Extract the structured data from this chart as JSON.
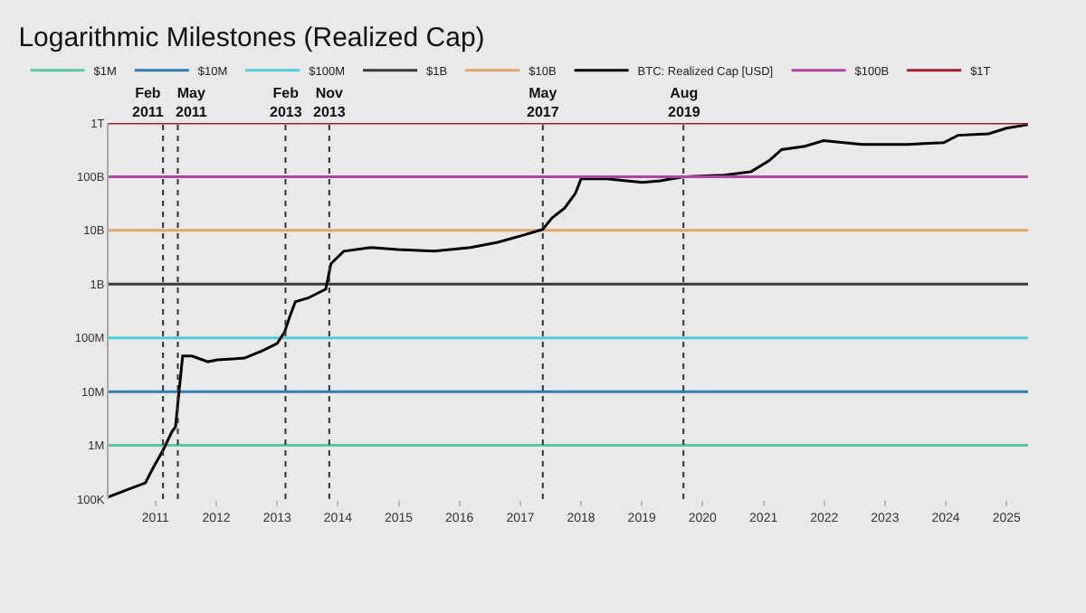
{
  "chart_data": {
    "type": "line",
    "title": "Logarithmic Milestones (Realized Cap)",
    "log": "y",
    "grid": false,
    "legend": "top left",
    "marker": "none",
    "xlim": [
      "2010-03-25",
      "2025-05-10"
    ],
    "xticks": [
      {
        "value": "2011-01-01",
        "label": "2011"
      },
      {
        "value": "2012-01-01",
        "label": "2012"
      },
      {
        "value": "2013-01-01",
        "label": "2013"
      },
      {
        "value": "2014-01-01",
        "label": "2014"
      },
      {
        "value": "2015-01-01",
        "label": "2015"
      },
      {
        "value": "2016-01-01",
        "label": "2016"
      },
      {
        "value": "2017-01-01",
        "label": "2017"
      },
      {
        "value": "2018-01-01",
        "label": "2018"
      },
      {
        "value": "2019-01-01",
        "label": "2019"
      },
      {
        "value": "2020-01-01",
        "label": "2020"
      },
      {
        "value": "2021-01-01",
        "label": "2021"
      },
      {
        "value": "2022-01-01",
        "label": "2022"
      },
      {
        "value": "2023-01-01",
        "label": "2023"
      },
      {
        "value": "2024-01-01",
        "label": "2024"
      },
      {
        "value": "2025-01-01",
        "label": "2025"
      }
    ],
    "ylim": [
      100000,
      1000000000000
    ],
    "yticks": [
      {
        "value": 100000,
        "label": "100K"
      },
      {
        "value": 1000000,
        "label": "1M"
      },
      {
        "value": 10000000,
        "label": "10M"
      },
      {
        "value": 100000000,
        "label": "100M"
      },
      {
        "value": 1000000000,
        "label": "1B"
      },
      {
        "value": 10000000000,
        "label": "10B"
      },
      {
        "value": 100000000000,
        "label": "100B"
      },
      {
        "value": 1000000000000,
        "label": "1T"
      }
    ],
    "series": [
      {
        "name": "$1M",
        "color": "#5cc6a4",
        "x": [
          "2010-03-25",
          "2025-05-10"
        ],
        "values": [
          1000000,
          1000000
        ]
      },
      {
        "name": "$10M",
        "color": "#2f7bb0",
        "x": [
          "2010-03-25",
          "2025-05-10"
        ],
        "values": [
          10000000,
          10000000
        ]
      },
      {
        "name": "$100M",
        "color": "#4fcfdc",
        "x": [
          "2010-03-25",
          "2025-05-10"
        ],
        "values": [
          100000000,
          100000000
        ]
      },
      {
        "name": "$1B",
        "color": "#3a3a3a",
        "x": [
          "2010-03-25",
          "2025-05-10"
        ],
        "values": [
          1000000000,
          1000000000
        ]
      },
      {
        "name": "$10B",
        "color": "#e0a56a",
        "x": [
          "2010-03-25",
          "2025-05-10"
        ],
        "values": [
          10000000000,
          10000000000
        ]
      },
      {
        "name": "BTC: Realized Cap [USD]",
        "color": "#000000",
        "x": [
          "2010-03-25",
          "2010-07-15",
          "2010-11-01",
          "2010-12-15",
          "2011-02-15",
          "2011-04-10",
          "2011-05-01",
          "2011-05-22",
          "2011-06-13",
          "2011-08-08",
          "2011-11-13",
          "2012-01-08",
          "2012-06-18",
          "2012-10-05",
          "2013-01-01",
          "2013-02-15",
          "2013-03-18",
          "2013-04-20",
          "2013-07-05",
          "2013-10-20",
          "2013-11-20",
          "2014-02-05",
          "2014-07-18",
          "2014-12-28",
          "2015-08-03",
          "2016-03-08",
          "2016-08-18",
          "2017-01-28",
          "2017-05-16",
          "2017-07-10",
          "2017-09-24",
          "2017-11-28",
          "2018-01-01",
          "2018-06-01",
          "2019-01-05",
          "2019-04-22",
          "2019-09-01",
          "2020-05-08",
          "2020-10-19",
          "2021-02-05",
          "2021-04-20",
          "2021-09-08",
          "2021-12-28",
          "2022-08-15",
          "2023-05-15",
          "2023-12-20",
          "2024-03-15",
          "2024-09-15",
          "2025-01-01",
          "2025-05-08"
        ],
        "values": [
          110000,
          150000,
          200000,
          370000,
          810000,
          1800000,
          2200000,
          10000000,
          46000000,
          46000000,
          36000000,
          39000000,
          42000000,
          58000000,
          79000000,
          130000000,
          250000000,
          470000000,
          550000000,
          810000000,
          2400000000,
          4100000000,
          4800000000,
          4400000000,
          4100000000,
          4800000000,
          6000000000,
          8300000000,
          10500000000,
          17000000000,
          26000000000,
          49000000000,
          91000000000,
          91000000000,
          78000000000,
          84000000000,
          99000000000,
          107000000000,
          124000000000,
          200000000000,
          320000000000,
          370000000000,
          470000000000,
          400000000000,
          400000000000,
          430000000000,
          590000000000,
          630000000000,
          800000000000,
          930000000000
        ]
      },
      {
        "name": "$100B",
        "color": "#b0449e",
        "x": [
          "2010-03-25",
          "2025-05-10"
        ],
        "values": [
          100000000000,
          100000000000
        ]
      },
      {
        "name": "$1T",
        "color": "#9e1b2c",
        "x": [
          "2010-03-25",
          "2025-05-10"
        ],
        "values": [
          1000000000000,
          1000000000000
        ]
      }
    ],
    "ref_lines": [
      {
        "axis": "x",
        "value": "2011-02-15",
        "label": "Feb 2011",
        "color": "#333333",
        "line_style": "dotted"
      },
      {
        "axis": "x",
        "value": "2011-05-15",
        "label": "May 2011",
        "color": "#333333",
        "line_style": "dotted"
      },
      {
        "axis": "x",
        "value": "2013-02-20",
        "label": "Feb 2013",
        "color": "#333333",
        "line_style": "dotted"
      },
      {
        "axis": "x",
        "value": "2013-11-10",
        "label": "Nov 2013",
        "color": "#333333",
        "line_style": "dotted"
      },
      {
        "axis": "x",
        "value": "2017-05-16",
        "label": "May 2017",
        "color": "#333333",
        "line_style": "dotted"
      },
      {
        "axis": "x",
        "value": "2019-09-08",
        "label": "Aug 2019",
        "color": "#333333",
        "line_style": "dotted"
      }
    ]
  }
}
